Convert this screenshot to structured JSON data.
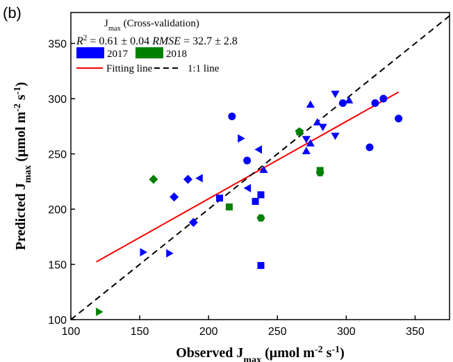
{
  "chart_data": {
    "type": "scatter",
    "panel_label": "(b)",
    "x_label": [
      {
        "text": "Observed J"
      },
      {
        "text": "max",
        "sub": true
      },
      {
        "text": " (μmol m"
      },
      {
        "text": "-2",
        "sup": true
      },
      {
        "text": " s"
      },
      {
        "text": "-1",
        "sup": true
      },
      {
        "text": ")"
      }
    ],
    "y_label": [
      {
        "text": "Predicted J"
      },
      {
        "text": "max",
        "sub": true
      },
      {
        "text": " (μmol m"
      },
      {
        "text": "-2",
        "sup": true
      },
      {
        "text": " s"
      },
      {
        "text": "-1",
        "sup": true
      },
      {
        "text": ")"
      }
    ],
    "legend_title": [
      {
        "text": "J"
      },
      {
        "text": "max",
        "sub": true
      },
      {
        "text": " (Cross-validation)"
      }
    ],
    "stats": [
      {
        "text": "R",
        "italic": true
      },
      {
        "text": "2",
        "sup": true
      },
      {
        "text": " = 0.61 ± 0.04  "
      },
      {
        "text": "RMSE",
        "italic": true
      },
      {
        "text": " = 32.7 ± 2.8"
      }
    ],
    "xlim": [
      100,
      375
    ],
    "ylim": [
      100,
      378
    ],
    "xticks": [
      100,
      150,
      200,
      250,
      300,
      350
    ],
    "yticks": [
      100,
      150,
      200,
      250,
      300,
      350
    ],
    "series": [
      {
        "name": "2017",
        "color": "#0000ff",
        "x": [
          217,
          228,
          297.5,
          321,
          327,
          338,
          317,
          208,
          238,
          234,
          238,
          274,
          274,
          279,
          271,
          302,
          240,
          292,
          292,
          271,
          283,
          223,
          152,
          171,
          229,
          194,
          237,
          185,
          175,
          189
        ],
        "values": [
          284,
          244,
          296,
          296,
          300,
          282,
          256,
          210,
          213,
          207,
          149,
          294,
          259,
          278,
          252,
          298,
          235,
          305,
          267,
          264,
          275,
          264,
          161,
          160,
          219,
          228,
          254,
          227,
          211,
          188
        ],
        "markers": [
          "circle",
          "circle",
          "circle",
          "circle",
          "circle",
          "circle",
          "circle",
          "square",
          "square",
          "square",
          "square",
          "triangle-up",
          "triangle-up",
          "triangle-up",
          "triangle-up",
          "triangle-up",
          "triangle-up",
          "triangle-down",
          "triangle-down",
          "triangle-down",
          "triangle-down",
          "triangle-right",
          "triangle-right",
          "triangle-right",
          "triangle-left",
          "triangle-left",
          "triangle-left",
          "diamond",
          "diamond",
          "diamond"
        ]
      },
      {
        "name": "2018",
        "color": "#008000",
        "x": [
          160,
          215,
          238,
          266,
          281,
          281,
          120
        ],
        "values": [
          227,
          202,
          192,
          270,
          235,
          233,
          107
        ],
        "markers": [
          "diamond",
          "square",
          "hexagon",
          "pentagon",
          "square",
          "hexagon",
          "triangle-right"
        ]
      }
    ],
    "lines": [
      {
        "name": "Fitting line",
        "color": "#ff0000",
        "dash": false,
        "x": [
          118.5,
          338
        ],
        "values": [
          152.3,
          306
        ]
      },
      {
        "name": "1:1 line",
        "color": "#000000",
        "dash": true,
        "x": [
          100,
          375
        ],
        "values": [
          100,
          375
        ]
      }
    ]
  }
}
